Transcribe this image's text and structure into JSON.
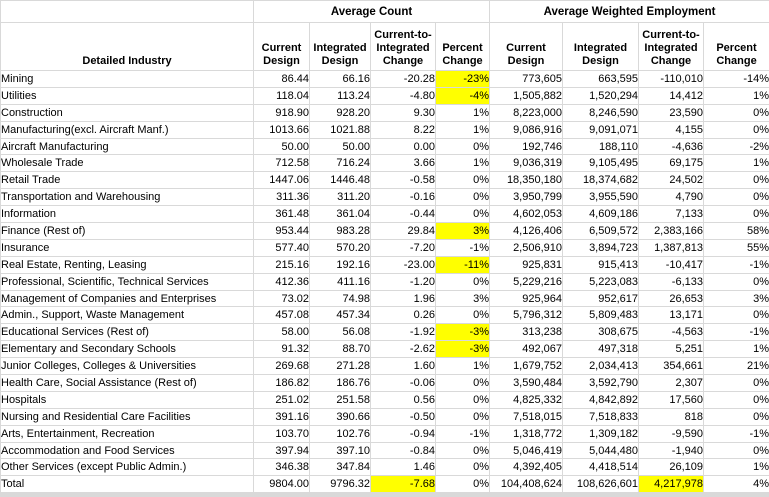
{
  "table": {
    "group_headers": {
      "corner": "",
      "average_count": "Average Count",
      "average_weighted_employment": "Average Weighted Employment"
    },
    "column_headers": {
      "industry": "Detailed Industry",
      "count": [
        "Current\nDesign",
        "Integrated\nDesign",
        "Current-to-\nIntegrated\nChange",
        "Percent\nChange"
      ],
      "awe": [
        "Current\nDesign",
        "Integrated\nDesign",
        "Current-to-\nIntegrated\nChange",
        "Percent\nChange"
      ]
    },
    "highlight_color": "#ffff00",
    "rows": [
      {
        "industry": "Mining",
        "cells": [
          "86.44",
          "66.16",
          "-20.28",
          "-23%",
          "773,605",
          "663,595",
          "-110,010",
          "-14%"
        ],
        "highlight": [
          3
        ]
      },
      {
        "industry": "Utilities",
        "cells": [
          "118.04",
          "113.24",
          "-4.80",
          "-4%",
          "1,505,882",
          "1,520,294",
          "14,412",
          "1%"
        ],
        "highlight": [
          3
        ]
      },
      {
        "industry": "Construction",
        "cells": [
          "918.90",
          "928.20",
          "9.30",
          "1%",
          "8,223,000",
          "8,246,590",
          "23,590",
          "0%"
        ],
        "highlight": []
      },
      {
        "industry": "Manufacturing(excl. Aircraft Manf.)",
        "cells": [
          "1013.66",
          "1021.88",
          "8.22",
          "1%",
          "9,086,916",
          "9,091,071",
          "4,155",
          "0%"
        ],
        "highlight": []
      },
      {
        "industry": "Aircraft Manufacturing",
        "cells": [
          "50.00",
          "50.00",
          "0.00",
          "0%",
          "192,746",
          "188,110",
          "-4,636",
          "-2%"
        ],
        "highlight": []
      },
      {
        "industry": "Wholesale Trade",
        "cells": [
          "712.58",
          "716.24",
          "3.66",
          "1%",
          "9,036,319",
          "9,105,495",
          "69,175",
          "1%"
        ],
        "highlight": []
      },
      {
        "industry": "Retail Trade",
        "cells": [
          "1447.06",
          "1446.48",
          "-0.58",
          "0%",
          "18,350,180",
          "18,374,682",
          "24,502",
          "0%"
        ],
        "highlight": []
      },
      {
        "industry": "Transportation and Warehousing",
        "cells": [
          "311.36",
          "311.20",
          "-0.16",
          "0%",
          "3,950,799",
          "3,955,590",
          "4,790",
          "0%"
        ],
        "highlight": []
      },
      {
        "industry": "Information",
        "cells": [
          "361.48",
          "361.04",
          "-0.44",
          "0%",
          "4,602,053",
          "4,609,186",
          "7,133",
          "0%"
        ],
        "highlight": []
      },
      {
        "industry": "Finance (Rest of)",
        "cells": [
          "953.44",
          "983.28",
          "29.84",
          "3%",
          "4,126,406",
          "6,509,572",
          "2,383,166",
          "58%"
        ],
        "highlight": [
          3
        ]
      },
      {
        "industry": "Insurance",
        "cells": [
          "577.40",
          "570.20",
          "-7.20",
          "-1%",
          "2,506,910",
          "3,894,723",
          "1,387,813",
          "55%"
        ],
        "highlight": []
      },
      {
        "industry": "Real Estate, Renting, Leasing",
        "cells": [
          "215.16",
          "192.16",
          "-23.00",
          "-11%",
          "925,831",
          "915,413",
          "-10,417",
          "-1%"
        ],
        "highlight": [
          3
        ]
      },
      {
        "industry": "Professional, Scientific, Technical Services",
        "cells": [
          "412.36",
          "411.16",
          "-1.20",
          "0%",
          "5,229,216",
          "5,223,083",
          "-6,133",
          "0%"
        ],
        "highlight": []
      },
      {
        "industry": "Management of Companies and Enterprises",
        "cells": [
          "73.02",
          "74.98",
          "1.96",
          "3%",
          "925,964",
          "952,617",
          "26,653",
          "3%"
        ],
        "highlight": []
      },
      {
        "industry": "Admin., Support, Waste Management",
        "cells": [
          "457.08",
          "457.34",
          "0.26",
          "0%",
          "5,796,312",
          "5,809,483",
          "13,171",
          "0%"
        ],
        "highlight": []
      },
      {
        "industry": "Educational Services (Rest of)",
        "cells": [
          "58.00",
          "56.08",
          "-1.92",
          "-3%",
          "313,238",
          "308,675",
          "-4,563",
          "-1%"
        ],
        "highlight": [
          3
        ]
      },
      {
        "industry": "Elementary and Secondary Schools",
        "cells": [
          "91.32",
          "88.70",
          "-2.62",
          "-3%",
          "492,067",
          "497,318",
          "5,251",
          "1%"
        ],
        "highlight": [
          3
        ]
      },
      {
        "industry": "Junior Colleges, Colleges & Universities",
        "cells": [
          "269.68",
          "271.28",
          "1.60",
          "1%",
          "1,679,752",
          "2,034,413",
          "354,661",
          "21%"
        ],
        "highlight": []
      },
      {
        "industry": "Health Care, Social Assistance (Rest of)",
        "cells": [
          "186.82",
          "186.76",
          "-0.06",
          "0%",
          "3,590,484",
          "3,592,790",
          "2,307",
          "0%"
        ],
        "highlight": []
      },
      {
        "industry": "Hospitals",
        "cells": [
          "251.02",
          "251.58",
          "0.56",
          "0%",
          "4,825,332",
          "4,842,892",
          "17,560",
          "0%"
        ],
        "highlight": []
      },
      {
        "industry": "Nursing and Residential Care Facilities",
        "cells": [
          "391.16",
          "390.66",
          "-0.50",
          "0%",
          "7,518,015",
          "7,518,833",
          "818",
          "0%"
        ],
        "highlight": []
      },
      {
        "industry": "Arts, Entertainment, Recreation",
        "cells": [
          "103.70",
          "102.76",
          "-0.94",
          "-1%",
          "1,318,772",
          "1,309,182",
          "-9,590",
          "-1%"
        ],
        "highlight": []
      },
      {
        "industry": "Accommodation and Food Services",
        "cells": [
          "397.94",
          "397.10",
          "-0.84",
          "0%",
          "5,046,419",
          "5,044,480",
          "-1,940",
          "0%"
        ],
        "highlight": []
      },
      {
        "industry": "Other Services (except Public Admin.)",
        "cells": [
          "346.38",
          "347.84",
          "1.46",
          "0%",
          "4,392,405",
          "4,418,514",
          "26,109",
          "1%"
        ],
        "highlight": []
      },
      {
        "industry": "Total",
        "cells": [
          "9804.00",
          "9796.32",
          "-7.68",
          "0%",
          "104,408,624",
          "108,626,601",
          "4,217,978",
          "4%"
        ],
        "highlight": [
          2,
          6
        ]
      }
    ]
  }
}
